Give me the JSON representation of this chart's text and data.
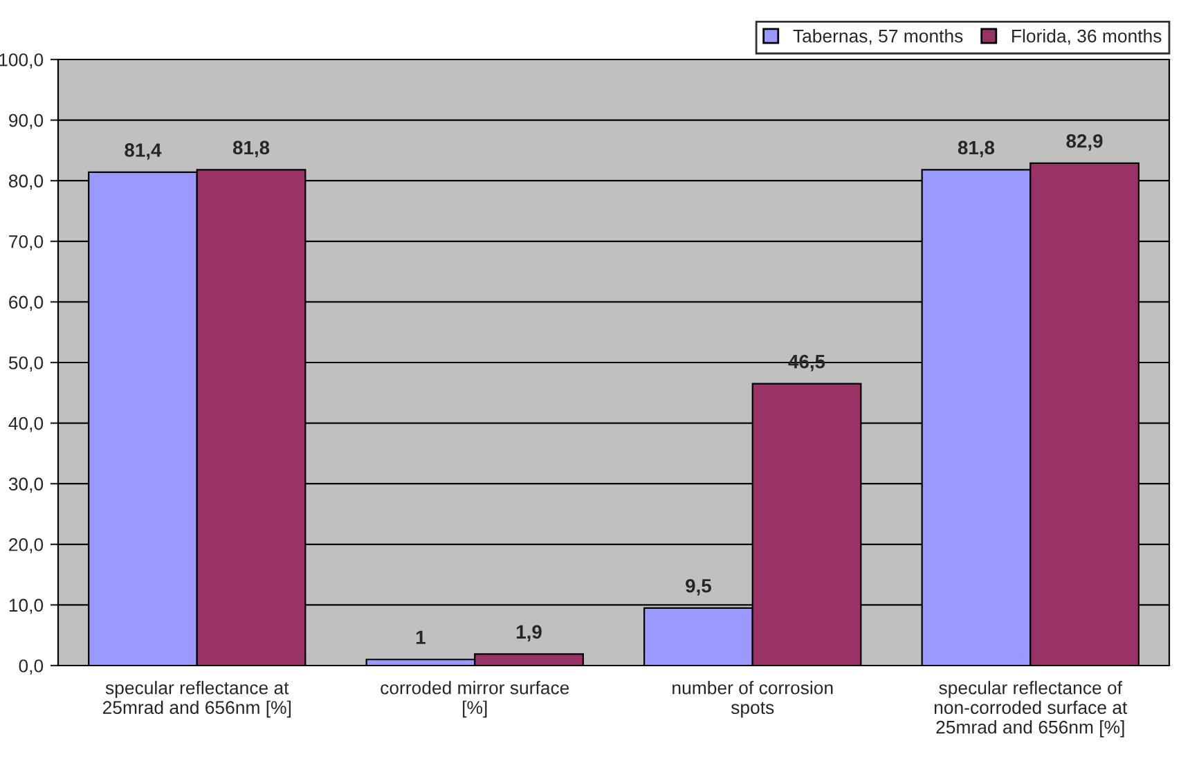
{
  "chart_data": {
    "type": "bar",
    "categories": [
      "specular reflectance at\n25mrad and 656nm [%]",
      "corroded mirror surface\n[%]",
      "number of corrosion\nspots",
      "specular reflectance of\nnon-corroded surface at\n25mrad and 656nm [%]"
    ],
    "series": [
      {
        "name": "Tabernas, 57 months",
        "color": "#9999ff",
        "values": [
          81.4,
          1,
          9.5,
          81.8
        ],
        "value_labels": [
          "81,4",
          "1",
          "9,5",
          "81,8"
        ]
      },
      {
        "name": "Florida, 36 months",
        "color": "#993366",
        "values": [
          81.8,
          1.9,
          46.5,
          82.9
        ],
        "value_labels": [
          "81,8",
          "1,9",
          "46,5",
          "82,9"
        ]
      }
    ],
    "ylim": [
      0,
      100
    ],
    "yticks": [
      {
        "value": 0,
        "label": "0,0"
      },
      {
        "value": 10,
        "label": "10,0"
      },
      {
        "value": 20,
        "label": "20,0"
      },
      {
        "value": 30,
        "label": "30,0"
      },
      {
        "value": 40,
        "label": "40,0"
      },
      {
        "value": 50,
        "label": "50,0"
      },
      {
        "value": 60,
        "label": "60,0"
      },
      {
        "value": 70,
        "label": "70,0"
      },
      {
        "value": 80,
        "label": "80,0"
      },
      {
        "value": 90,
        "label": "90,0"
      },
      {
        "value": 100,
        "label": "100,0"
      }
    ],
    "grid": "y",
    "legend": "top right"
  }
}
